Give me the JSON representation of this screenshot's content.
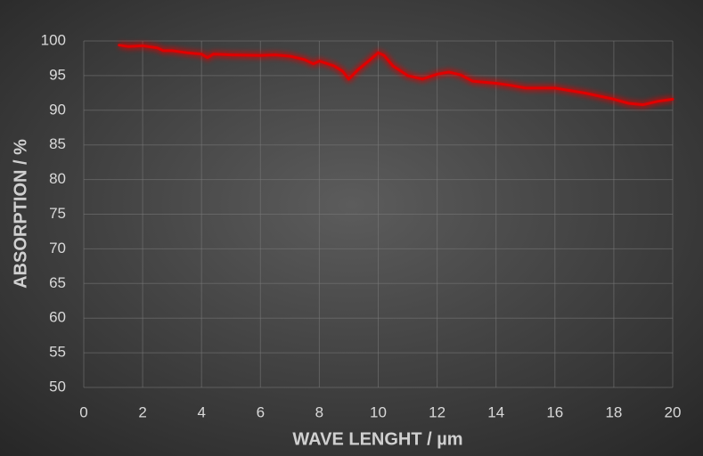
{
  "chart_data": {
    "type": "line",
    "x_label": "WAVE LENGHT / µm",
    "y_label": "ABSORPTION / %",
    "xlim": [
      0,
      20
    ],
    "xticks": [
      0,
      2,
      4,
      6,
      8,
      10,
      12,
      14,
      16,
      18,
      20
    ],
    "ylim": [
      50,
      100
    ],
    "yticks": [
      50,
      55,
      60,
      65,
      70,
      75,
      80,
      85,
      90,
      95,
      100
    ],
    "grid": true,
    "series": [
      {
        "color": "#e00000",
        "x": [
          1.2,
          1.5,
          2.0,
          2.5,
          2.7,
          3.0,
          3.5,
          4.0,
          4.2,
          4.4,
          5,
          6,
          6.5,
          7,
          7.5,
          7.8,
          8.0,
          8.5,
          8.8,
          9.0,
          9.3,
          9.7,
          10.0,
          10.2,
          10.5,
          11,
          11.5,
          12,
          12.4,
          12.8,
          13.2,
          14,
          14.5,
          15,
          16,
          17,
          18,
          18.5,
          19,
          19.5,
          20
        ],
        "values": [
          99.4,
          99.2,
          99.3,
          99.0,
          98.6,
          98.6,
          98.3,
          98.1,
          97.6,
          98.1,
          98.0,
          97.9,
          98.0,
          97.8,
          97.3,
          96.7,
          97.1,
          96.4,
          95.6,
          94.5,
          95.8,
          97.2,
          98.3,
          97.9,
          96.4,
          95.0,
          94.5,
          95.2,
          95.5,
          95.1,
          94.2,
          93.9,
          93.6,
          93.2,
          93.2,
          92.5,
          91.6,
          91.0,
          90.8,
          91.3,
          91.6
        ]
      }
    ]
  }
}
